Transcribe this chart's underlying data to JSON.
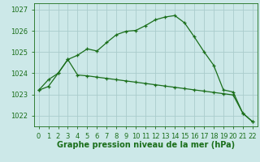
{
  "line1_x": [
    0,
    1,
    2,
    3,
    4,
    5,
    6,
    7,
    8,
    9,
    10,
    11,
    12,
    13,
    14,
    15,
    16,
    17,
    18,
    19,
    20,
    21,
    22
  ],
  "line1_y": [
    1023.2,
    1023.7,
    1024.0,
    1024.65,
    1024.85,
    1025.15,
    1025.05,
    1025.45,
    1025.82,
    1025.98,
    1026.02,
    1026.25,
    1026.52,
    1026.65,
    1026.72,
    1026.38,
    1025.72,
    1025.02,
    1024.38,
    1023.22,
    1023.12,
    1022.12,
    1021.72
  ],
  "line2_x": [
    0,
    1,
    2,
    3,
    4,
    5,
    6,
    7,
    8,
    9,
    10,
    11,
    12,
    13,
    14,
    15,
    16,
    17,
    18,
    19,
    20,
    21,
    22
  ],
  "line2_y": [
    1023.2,
    1023.38,
    1024.0,
    1024.65,
    1023.92,
    1023.88,
    1023.82,
    1023.76,
    1023.7,
    1023.64,
    1023.58,
    1023.52,
    1023.46,
    1023.4,
    1023.34,
    1023.28,
    1023.22,
    1023.16,
    1023.1,
    1023.04,
    1022.98,
    1022.12,
    1021.72
  ],
  "line_color": "#1a6e1a",
  "bg_color": "#cce8e8",
  "grid_color": "#aacccc",
  "xlabel": "Graphe pression niveau de la mer (hPa)",
  "ylim": [
    1021.5,
    1027.3
  ],
  "xlim": [
    -0.5,
    22.5
  ],
  "yticks": [
    1022,
    1023,
    1024,
    1025,
    1026,
    1027
  ],
  "xticks": [
    0,
    1,
    2,
    3,
    4,
    5,
    6,
    7,
    8,
    9,
    10,
    11,
    12,
    13,
    14,
    15,
    16,
    17,
    18,
    19,
    20,
    21,
    22
  ],
  "marker": "+",
  "markersize": 3,
  "linewidth": 0.9,
  "xlabel_fontsize": 7,
  "tick_fontsize": 6
}
